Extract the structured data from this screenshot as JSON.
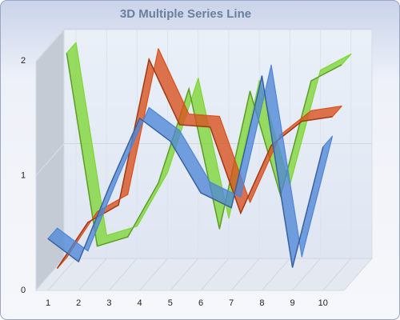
{
  "chart_data": {
    "type": "line3d",
    "title": "3D Multiple Series Line",
    "categories": [
      "1",
      "2",
      "3",
      "4",
      "5",
      "6",
      "7",
      "8",
      "9",
      "10"
    ],
    "series": [
      {
        "color": "#4f86d6",
        "values": [
          0.45,
          0.25,
          0.9,
          1.5,
          1.3,
          0.85,
          0.72,
          1.87,
          0.2,
          1.25
        ]
      },
      {
        "color": "#d9501c",
        "values": [
          0.1,
          0.5,
          0.65,
          1.92,
          1.35,
          1.33,
          0.58,
          1.17,
          1.38,
          1.42
        ]
      },
      {
        "color": "#7fd636",
        "values": [
          1.88,
          0.2,
          0.28,
          0.75,
          1.57,
          0.35,
          1.55,
          0.64,
          1.64,
          1.78
        ]
      }
    ],
    "ylim": [
      0,
      2
    ],
    "yticks": [
      0,
      1,
      2
    ],
    "grid": true
  }
}
